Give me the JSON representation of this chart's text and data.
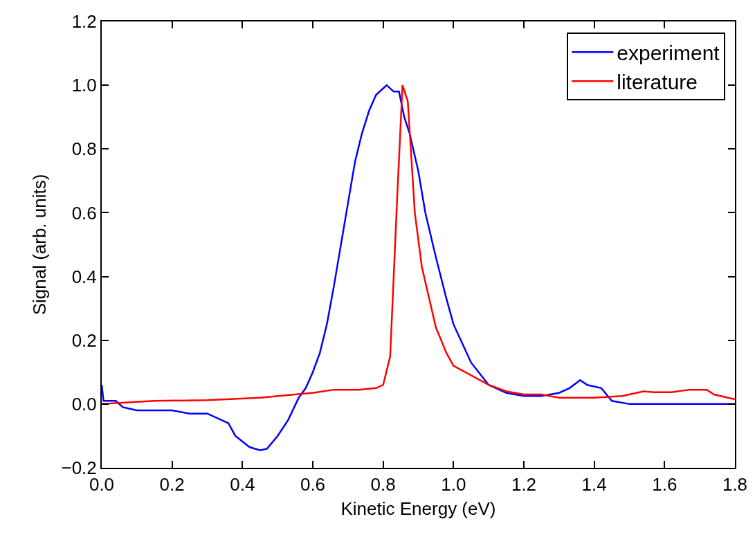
{
  "chart_data": {
    "type": "line",
    "xlabel": "Kinetic Energy (eV)",
    "ylabel": "Signal (arb. units)",
    "xlim": [
      0,
      1.8
    ],
    "xticks": [
      {
        "value": 0,
        "label": "0.0"
      },
      0.2,
      0.4,
      0.6,
      0.8,
      {
        "value": 1,
        "label": "1.0"
      },
      1.2,
      1.4,
      1.6,
      1.8
    ],
    "ylim": [
      -0.2,
      1.2
    ],
    "yticks": [
      {
        "value": -0.2,
        "label": "−0.2"
      },
      {
        "value": 0,
        "label": "0.0"
      },
      0.2,
      0.4,
      0.6,
      0.8,
      {
        "value": 1,
        "label": "1.0"
      },
      1.2
    ],
    "legend": "top right",
    "marker": "none",
    "line_style": "solid",
    "series": [
      {
        "name": "experiment",
        "color": "#0000ff",
        "x": [
          0.0,
          0.005,
          0.02,
          0.04,
          0.06,
          0.1,
          0.15,
          0.2,
          0.25,
          0.3,
          0.34,
          0.36,
          0.38,
          0.42,
          0.45,
          0.47,
          0.5,
          0.53,
          0.56,
          0.58,
          0.6,
          0.62,
          0.64,
          0.66,
          0.68,
          0.7,
          0.72,
          0.74,
          0.76,
          0.78,
          0.8,
          0.81,
          0.83,
          0.845,
          0.86,
          0.875,
          0.9,
          0.92,
          0.95,
          0.98,
          1.0,
          1.05,
          1.1,
          1.15,
          1.2,
          1.25,
          1.3,
          1.33,
          1.36,
          1.38,
          1.42,
          1.45,
          1.5,
          1.8
        ],
        "values": [
          0.06,
          0.01,
          0.01,
          0.01,
          -0.01,
          -0.02,
          -0.02,
          -0.02,
          -0.03,
          -0.03,
          -0.05,
          -0.06,
          -0.1,
          -0.135,
          -0.145,
          -0.14,
          -0.1,
          -0.05,
          0.02,
          0.05,
          0.1,
          0.16,
          0.25,
          0.37,
          0.5,
          0.63,
          0.76,
          0.85,
          0.92,
          0.97,
          0.99,
          1.0,
          0.98,
          0.98,
          0.9,
          0.85,
          0.73,
          0.6,
          0.46,
          0.33,
          0.25,
          0.13,
          0.06,
          0.035,
          0.025,
          0.025,
          0.035,
          0.05,
          0.075,
          0.06,
          0.05,
          0.01,
          0.0,
          0.0
        ]
      },
      {
        "name": "literature",
        "color": "#ff0000",
        "x": [
          0.0,
          0.15,
          0.3,
          0.45,
          0.55,
          0.6,
          0.66,
          0.73,
          0.78,
          0.8,
          0.82,
          0.84,
          0.855,
          0.87,
          0.89,
          0.91,
          0.95,
          0.98,
          1.0,
          1.1,
          1.15,
          1.2,
          1.25,
          1.3,
          1.4,
          1.48,
          1.54,
          1.57,
          1.62,
          1.67,
          1.72,
          1.74,
          1.8
        ],
        "values": [
          0.0,
          0.01,
          0.012,
          0.02,
          0.03,
          0.035,
          0.045,
          0.045,
          0.05,
          0.06,
          0.15,
          0.65,
          1.0,
          0.95,
          0.6,
          0.43,
          0.24,
          0.16,
          0.12,
          0.06,
          0.04,
          0.03,
          0.03,
          0.02,
          0.02,
          0.025,
          0.04,
          0.037,
          0.037,
          0.045,
          0.045,
          0.03,
          0.015
        ]
      }
    ]
  }
}
